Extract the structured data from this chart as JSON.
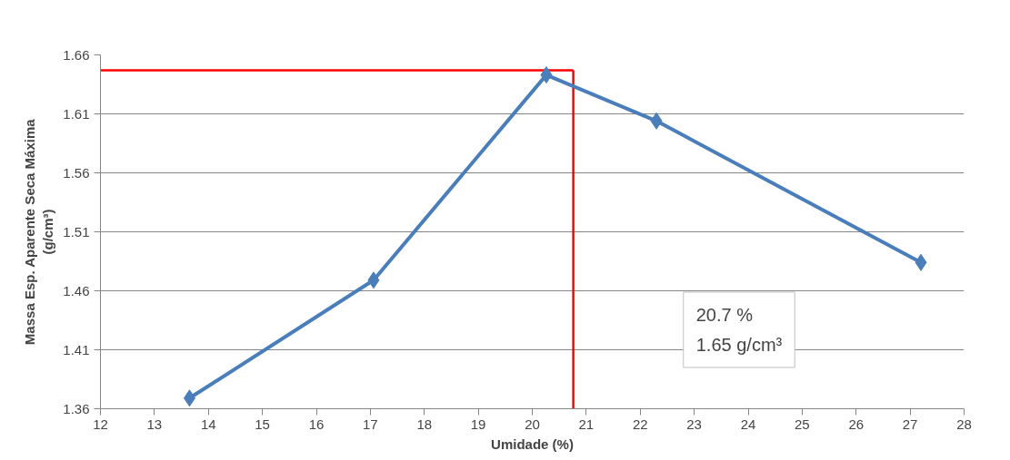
{
  "chart_data": {
    "type": "line",
    "xlabel": "Umidade (%)",
    "ylabel": "Massa Esp. Aparente Seca Máxima\n(g/cm³)",
    "x": [
      13.65,
      17.06,
      20.26,
      22.3,
      27.2
    ],
    "series": [
      {
        "color": "#4a7ebb",
        "values": [
          1.369,
          1.469,
          1.643,
          1.604,
          1.484
        ]
      }
    ],
    "xlim": [
      12,
      28
    ],
    "xticks": [
      12,
      13,
      14,
      15,
      16,
      17,
      18,
      19,
      20,
      21,
      22,
      23,
      24,
      25,
      26,
      27,
      28
    ],
    "ylim": [
      1.36,
      1.66
    ],
    "yticks": [
      1.36,
      1.41,
      1.46,
      1.51,
      1.56,
      1.61,
      1.66
    ],
    "grid": "y",
    "marker": "diamond",
    "line_style": "solid",
    "ref_lines": [
      {
        "axis": "y",
        "value": 1.647,
        "color": "#ff0000"
      },
      {
        "axis": "x",
        "value": 20.76,
        "color": "#ff0000"
      }
    ],
    "annotations": [
      "20.7 %\n1.65 g/cm³"
    ]
  }
}
